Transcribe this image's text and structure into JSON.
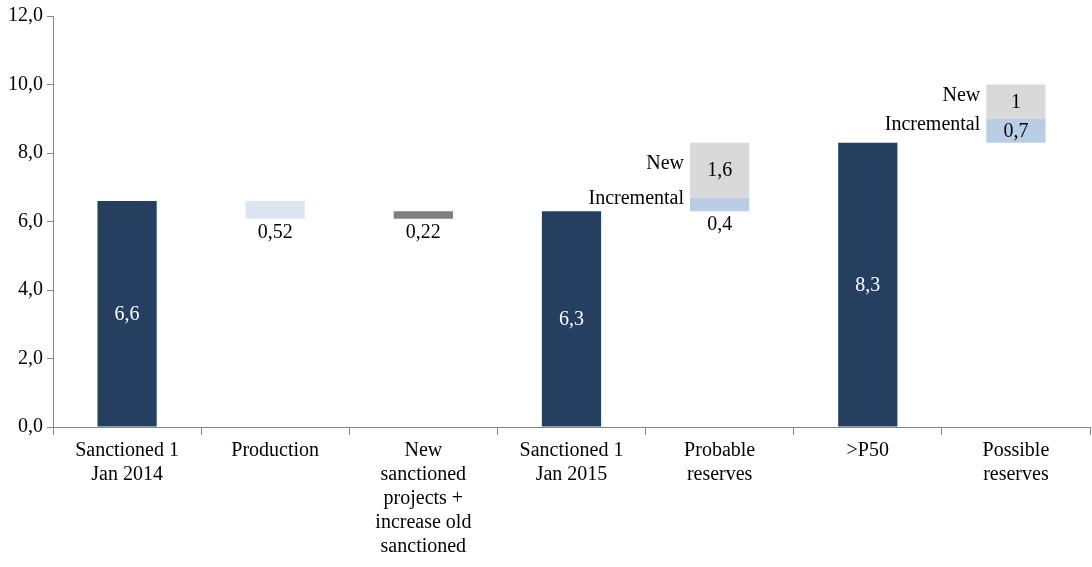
{
  "chart_data": {
    "type": "bar",
    "categories": [
      "Sanctioned 1 Jan 2014",
      "Production",
      "New sanctioned projects + increase old sanctioned",
      "Sanctioned 1 Jan 2015",
      "Probable reserves",
      ">P50",
      "Possible reserves"
    ],
    "series": [
      {
        "color": "#243f60",
        "values": [
          6.6,
          null,
          null,
          6.3,
          null,
          8.3,
          null
        ],
        "value_labels": [
          "6,6",
          null,
          null,
          "6,3",
          null,
          "8,3",
          null
        ]
      },
      {
        "color": "#dce6f2",
        "values": [
          null,
          0.52,
          null,
          null,
          null,
          null,
          null
        ],
        "base": [
          null,
          6.08,
          null,
          null,
          null,
          null,
          null
        ],
        "value_labels": [
          null,
          "0,52",
          null,
          null,
          null,
          null,
          null
        ]
      },
      {
        "color": "#7f7f7f",
        "values": [
          null,
          null,
          0.22,
          null,
          null,
          null,
          null
        ],
        "base": [
          null,
          null,
          6.08,
          null,
          null,
          null,
          null
        ],
        "value_labels": [
          null,
          null,
          "0,22",
          null,
          null,
          null,
          null
        ]
      },
      {
        "name": "Incremental",
        "color": "#b9cde5",
        "values": [
          null,
          null,
          null,
          null,
          0.4,
          null,
          0.7
        ],
        "base": [
          null,
          null,
          null,
          null,
          6.3,
          null,
          8.3
        ],
        "value_labels": [
          null,
          null,
          null,
          null,
          "0,4",
          null,
          "0,7"
        ]
      },
      {
        "name": "New",
        "color": "#d9d9d9",
        "values": [
          null,
          null,
          null,
          null,
          1.6,
          null,
          1
        ],
        "base": [
          null,
          null,
          null,
          null,
          6.7,
          null,
          9.0
        ],
        "value_labels": [
          null,
          null,
          null,
          null,
          "1,6",
          null,
          "1"
        ]
      }
    ],
    "ylim": [
      0,
      12
    ],
    "yticks": [
      {
        "value": 0,
        "label": "0,0"
      },
      {
        "value": 2,
        "label": "2,0"
      },
      {
        "value": 4,
        "label": "4,0"
      },
      {
        "value": 6,
        "label": "6,0"
      },
      {
        "value": 8,
        "label": "8,0"
      },
      {
        "value": 10,
        "label": "10,0"
      },
      {
        "value": 12,
        "label": "12,0"
      }
    ],
    "grid": false,
    "legend": false
  }
}
